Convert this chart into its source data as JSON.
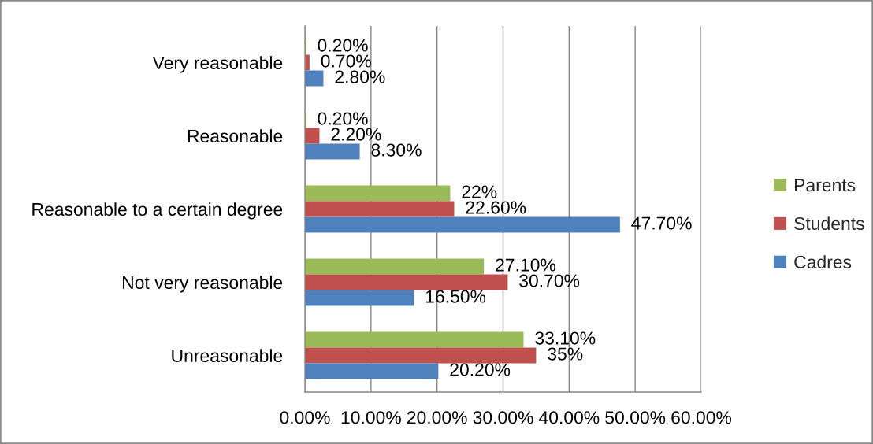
{
  "chart_data": {
    "type": "bar",
    "orientation": "horizontal",
    "categories": [
      "Very reasonable",
      "Reasonable",
      "Reasonable to a certain degree",
      "Not very reasonable",
      "Unreasonable"
    ],
    "series": [
      {
        "name": "Parents",
        "color": "#9bbb59",
        "values": [
          0.2,
          0.2,
          22,
          27.1,
          33.1
        ],
        "value_labels": [
          "0.20%",
          "0.20%",
          "22%",
          "27.10%",
          "33.10%"
        ]
      },
      {
        "name": "Students",
        "color": "#c0504d",
        "values": [
          0.7,
          2.2,
          22.6,
          30.7,
          35
        ],
        "value_labels": [
          "0.70%",
          "2.20%",
          "22.60%",
          "30.70%",
          "35%"
        ]
      },
      {
        "name": "Cadres",
        "color": "#4f81bd",
        "values": [
          2.8,
          8.3,
          47.7,
          16.5,
          20.2
        ],
        "value_labels": [
          "2.80%",
          "8.30%",
          "47.70%",
          "16.50%",
          "20.20%"
        ]
      }
    ],
    "xlim": [
      0,
      60
    ],
    "xticks": [
      {
        "value": 0,
        "label": "0.00%"
      },
      {
        "value": 10,
        "label": "10.00%"
      },
      {
        "value": 20,
        "label": "20.00%"
      },
      {
        "value": 30,
        "label": "30.00%"
      },
      {
        "value": 40,
        "label": "40.00%"
      },
      {
        "value": 50,
        "label": "50.00%"
      },
      {
        "value": 60,
        "label": "60.00%"
      }
    ],
    "grid": "x",
    "legend": "right"
  }
}
